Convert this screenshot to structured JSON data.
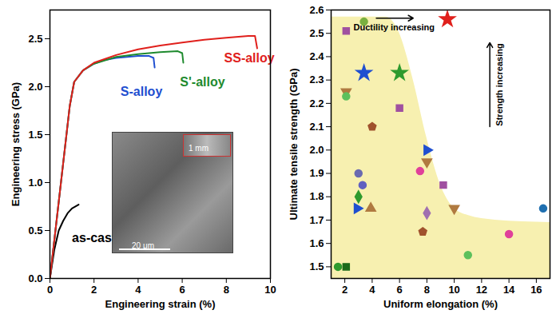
{
  "chart_data": [
    {
      "type": "line",
      "xlabel": "Engineering strain (%)",
      "ylabel": "Engineering stress (GPa)",
      "xlim": [
        0,
        10
      ],
      "xticks": [
        0,
        2,
        4,
        6,
        8,
        10
      ],
      "ylim": [
        0,
        2.8
      ],
      "yticks": [
        {
          "value": 0,
          "label": "0.0"
        },
        {
          "value": 0.5,
          "label": "0.5"
        },
        {
          "value": 1,
          "label": "1.0"
        },
        {
          "value": 1.5,
          "label": "1.5"
        },
        {
          "value": 2,
          "label": "2.0"
        },
        {
          "value": 2.5,
          "label": "2.5"
        }
      ],
      "series": [
        {
          "name": "as-cast",
          "color": "#000000",
          "label_at": [
            1.0,
            0.42
          ],
          "x": [
            0,
            0.2,
            0.4,
            0.6,
            0.8,
            1.0,
            1.3
          ],
          "values": [
            0,
            0.3,
            0.5,
            0.6,
            0.68,
            0.73,
            0.77
          ]
        },
        {
          "name": "S-alloy",
          "color": "#1f4fd0",
          "label_at": [
            3.2,
            1.95
          ],
          "x": [
            0,
            0.5,
            0.9,
            1.1,
            1.5,
            2,
            2.5,
            3,
            3.5,
            4,
            4.5,
            4.7,
            4.75
          ],
          "values": [
            0,
            1.0,
            1.8,
            2.05,
            2.17,
            2.24,
            2.28,
            2.3,
            2.31,
            2.32,
            2.32,
            2.3,
            2.2
          ]
        },
        {
          "name": "S'-alloy",
          "color": "#1e8a2e",
          "label_at": [
            5.9,
            2.05
          ],
          "x": [
            0,
            0.5,
            0.9,
            1.1,
            1.5,
            2,
            3,
            4,
            5,
            5.8,
            6,
            6.05
          ],
          "values": [
            0,
            1.0,
            1.8,
            2.05,
            2.17,
            2.24,
            2.31,
            2.34,
            2.36,
            2.37,
            2.35,
            2.25
          ]
        },
        {
          "name": "SS-alloy",
          "color": "#e0201c",
          "label_at": [
            7.9,
            2.3
          ],
          "x": [
            0,
            0.5,
            0.9,
            1.1,
            1.5,
            2,
            3,
            4,
            5,
            6,
            7,
            8,
            9,
            9.3,
            9.4
          ],
          "values": [
            0,
            1.0,
            1.8,
            2.05,
            2.17,
            2.25,
            2.33,
            2.39,
            2.43,
            2.46,
            2.49,
            2.51,
            2.53,
            2.53,
            2.4
          ]
        }
      ],
      "inset": {
        "scale_bars": [
          "20 μm",
          "1 mm"
        ]
      }
    },
    {
      "type": "scatter",
      "xlabel": "Uniform elongation (%)",
      "ylabel": "Ultimate tensile strength (GPa)",
      "xlim": [
        1,
        17
      ],
      "xticks": [
        2,
        4,
        6,
        8,
        10,
        12,
        14,
        16
      ],
      "ylim": [
        1.45,
        2.6
      ],
      "yticks": [
        1.5,
        1.6,
        1.7,
        1.8,
        1.9,
        {
          "value": 2,
          "label": "2.0"
        },
        2.1,
        2.2,
        2.3,
        2.4,
        2.5,
        2.6
      ],
      "series": [
        {
          "type": "area",
          "color": "#f7f0b0",
          "x": [
            1,
            5,
            6,
            7,
            8,
            9,
            10,
            11,
            13,
            17
          ],
          "values": [
            2.57,
            2.57,
            2.5,
            2.3,
            2.05,
            1.85,
            1.75,
            1.72,
            1.7,
            1.69
          ]
        },
        {
          "color": "#2e9a2e",
          "marker": "circle",
          "x": [
            1.5
          ],
          "values": [
            1.5
          ]
        },
        {
          "color": "#1a6a1a",
          "marker": "square",
          "x": [
            2.1
          ],
          "values": [
            1.5
          ]
        },
        {
          "color": "#a050a0",
          "marker": "square",
          "x": [
            2.1
          ],
          "values": [
            2.51
          ]
        },
        {
          "color": "#b07a40",
          "marker": "triangle-down",
          "x": [
            2.1
          ],
          "values": [
            2.25
          ]
        },
        {
          "color": "#5cc05c",
          "marker": "circle",
          "x": [
            2.1
          ],
          "values": [
            2.23
          ]
        },
        {
          "color": "#6a6ab0",
          "marker": "circle",
          "x": [
            3.0
          ],
          "values": [
            1.9
          ]
        },
        {
          "color": "#2e9a2e",
          "marker": "diamond",
          "x": [
            3.0
          ],
          "values": [
            1.8
          ]
        },
        {
          "color": "#1f4fd0",
          "marker": "triangle-right",
          "x": [
            2.9
          ],
          "values": [
            1.75
          ]
        },
        {
          "color": "#6060c0",
          "marker": "circle",
          "x": [
            3.3
          ],
          "values": [
            1.85
          ]
        },
        {
          "color": "#7ab040",
          "marker": "circle",
          "x": [
            3.4
          ],
          "values": [
            2.55
          ]
        },
        {
          "color": "#1f4fd0",
          "marker": "star",
          "x": [
            3.4
          ],
          "values": [
            2.33
          ]
        },
        {
          "color": "#b07a40",
          "marker": "triangle",
          "x": [
            3.9
          ],
          "values": [
            1.75
          ]
        },
        {
          "color": "#a0522d",
          "marker": "pentagon",
          "x": [
            4.0
          ],
          "values": [
            2.1
          ]
        },
        {
          "color": "#2e9a2e",
          "marker": "star",
          "x": [
            6.0
          ],
          "values": [
            2.33
          ]
        },
        {
          "color": "#a050a0",
          "marker": "square",
          "x": [
            6.0
          ],
          "values": [
            2.18
          ]
        },
        {
          "color": "#e0409a",
          "marker": "circle",
          "x": [
            7.5
          ],
          "values": [
            1.91
          ]
        },
        {
          "color": "#a0522d",
          "marker": "pentagon",
          "x": [
            7.7
          ],
          "values": [
            1.65
          ]
        },
        {
          "color": "#1f4fd0",
          "marker": "triangle-right",
          "x": [
            8.0
          ],
          "values": [
            2.0
          ]
        },
        {
          "color": "#b07a40",
          "marker": "triangle-down",
          "x": [
            8.0
          ],
          "values": [
            1.95
          ]
        },
        {
          "color": "#a070b0",
          "marker": "diamond",
          "x": [
            8.0
          ],
          "values": [
            1.73
          ]
        },
        {
          "color": "#a050a0",
          "marker": "square",
          "x": [
            9.2
          ],
          "values": [
            1.85
          ]
        },
        {
          "color": "#e0201c",
          "marker": "star",
          "x": [
            9.5
          ],
          "values": [
            2.56
          ]
        },
        {
          "color": "#b07a40",
          "marker": "triangle-down",
          "x": [
            10.0
          ],
          "values": [
            1.75
          ]
        },
        {
          "color": "#5cc05c",
          "marker": "circle",
          "x": [
            11.0
          ],
          "values": [
            1.55
          ]
        },
        {
          "color": "#e0409a",
          "marker": "circle",
          "x": [
            14.0
          ],
          "values": [
            1.64
          ]
        },
        {
          "color": "#1f6fb0",
          "marker": "circle",
          "x": [
            16.5
          ],
          "values": [
            1.75
          ]
        }
      ],
      "annotations": [
        {
          "text": "Ductility increasing",
          "x": 5.6,
          "y": 2.525,
          "arrow": [
            4.3,
            2.565,
            7.0,
            2.565
          ]
        },
        {
          "text": "Strength increasing",
          "x": 13.3,
          "y": 2.28,
          "arrow": [
            12.6,
            2.1,
            12.6,
            2.46
          ],
          "vertical": true
        }
      ]
    }
  ]
}
